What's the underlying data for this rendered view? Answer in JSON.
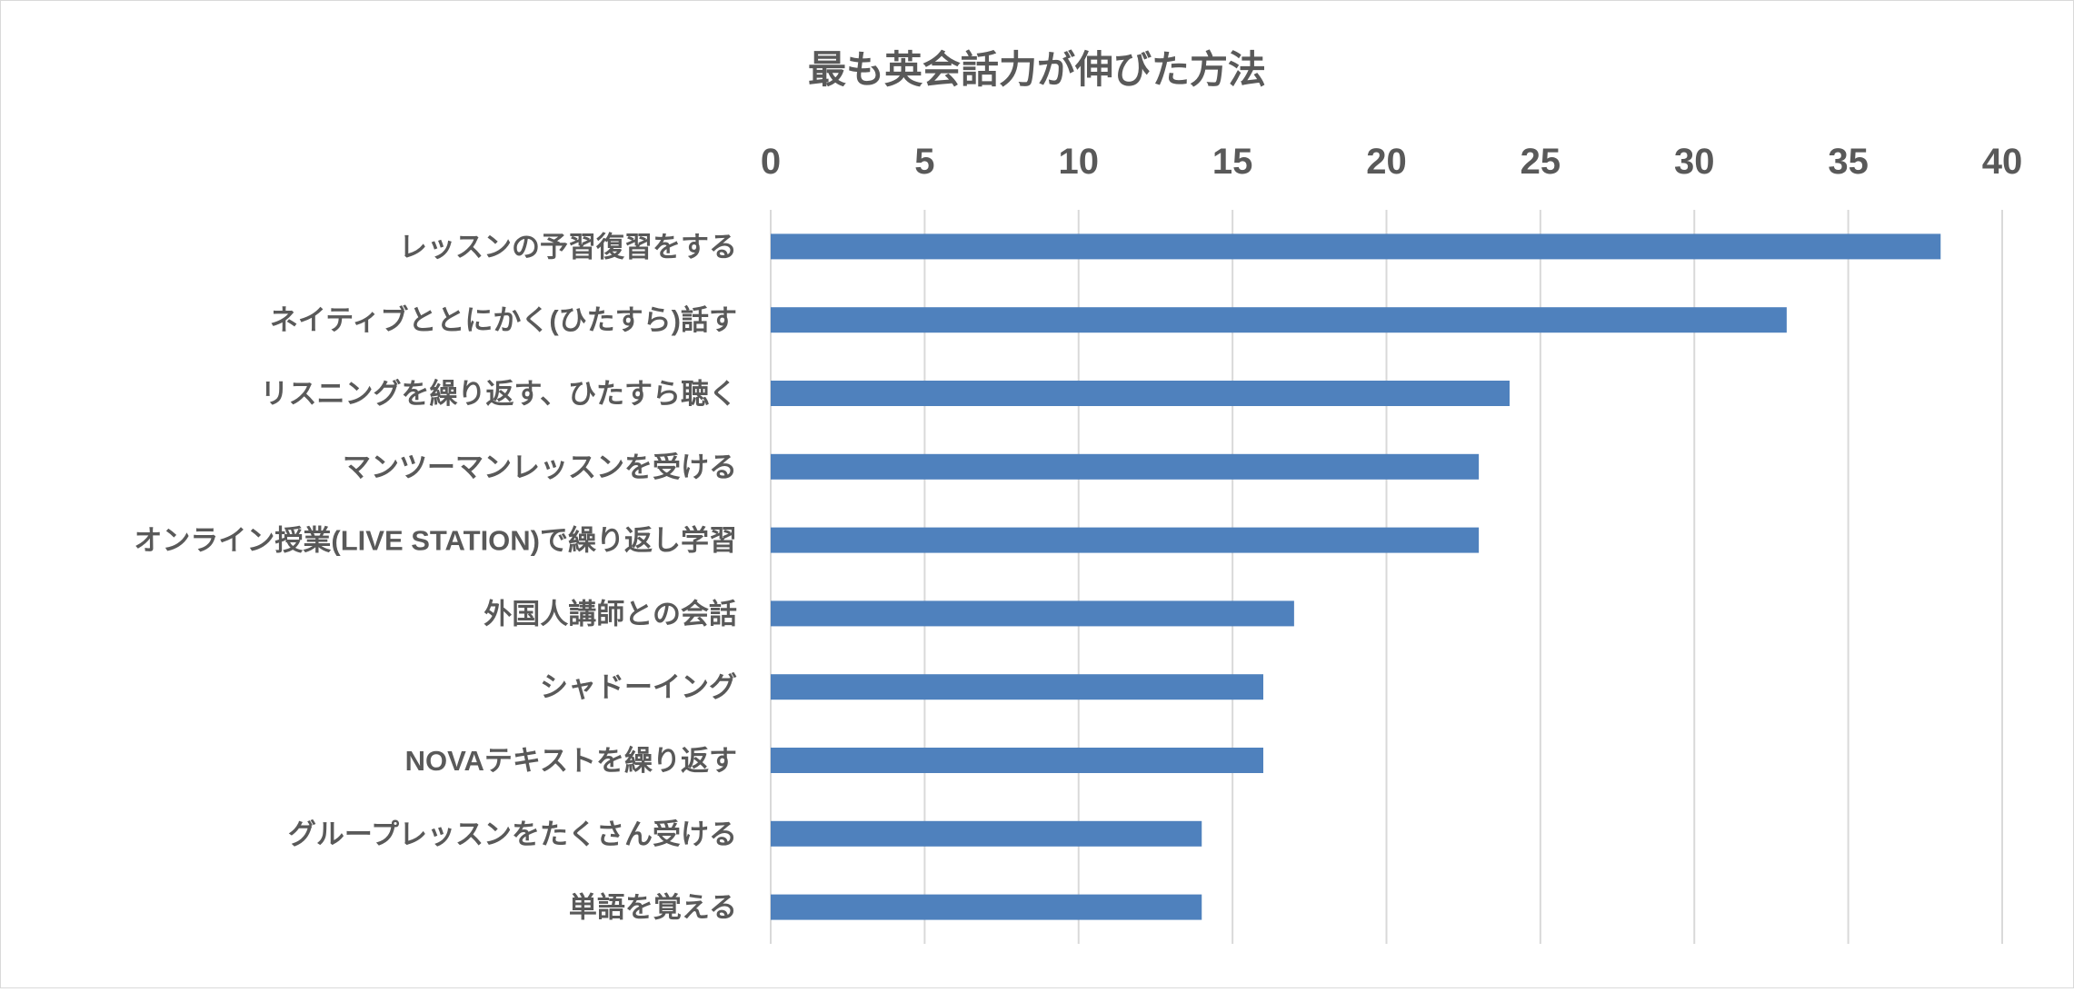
{
  "chart_data": {
    "type": "bar",
    "orientation": "horizontal",
    "title": "最も英会話力が伸びた方法",
    "xlim": [
      0,
      40
    ],
    "x_ticks": [
      "0",
      "5",
      "10",
      "15",
      "20",
      "25",
      "30",
      "35",
      "40"
    ],
    "x_tick_values": [
      0,
      5,
      10,
      15,
      20,
      25,
      30,
      35,
      40
    ],
    "x_axis_position": "top",
    "grid": true,
    "legend": "none",
    "bar_color": "#4f81bd",
    "categories": [
      "レッスンの予習復習をする",
      "ネイティブととにかく(ひたすら)話す",
      "リスニングを繰り返す、ひたすら聴く",
      "マンツーマンレッスンを受ける",
      "オンライン授業(LIVE STATION)で繰り返し学習",
      "外国人講師との会話",
      "シャドーイング",
      "NOVAテキストを繰り返す",
      "グループレッスンをたくさん受ける",
      "単語を覚える"
    ],
    "values": [
      38,
      33,
      24,
      23,
      23,
      17,
      16,
      16,
      14,
      14
    ]
  }
}
